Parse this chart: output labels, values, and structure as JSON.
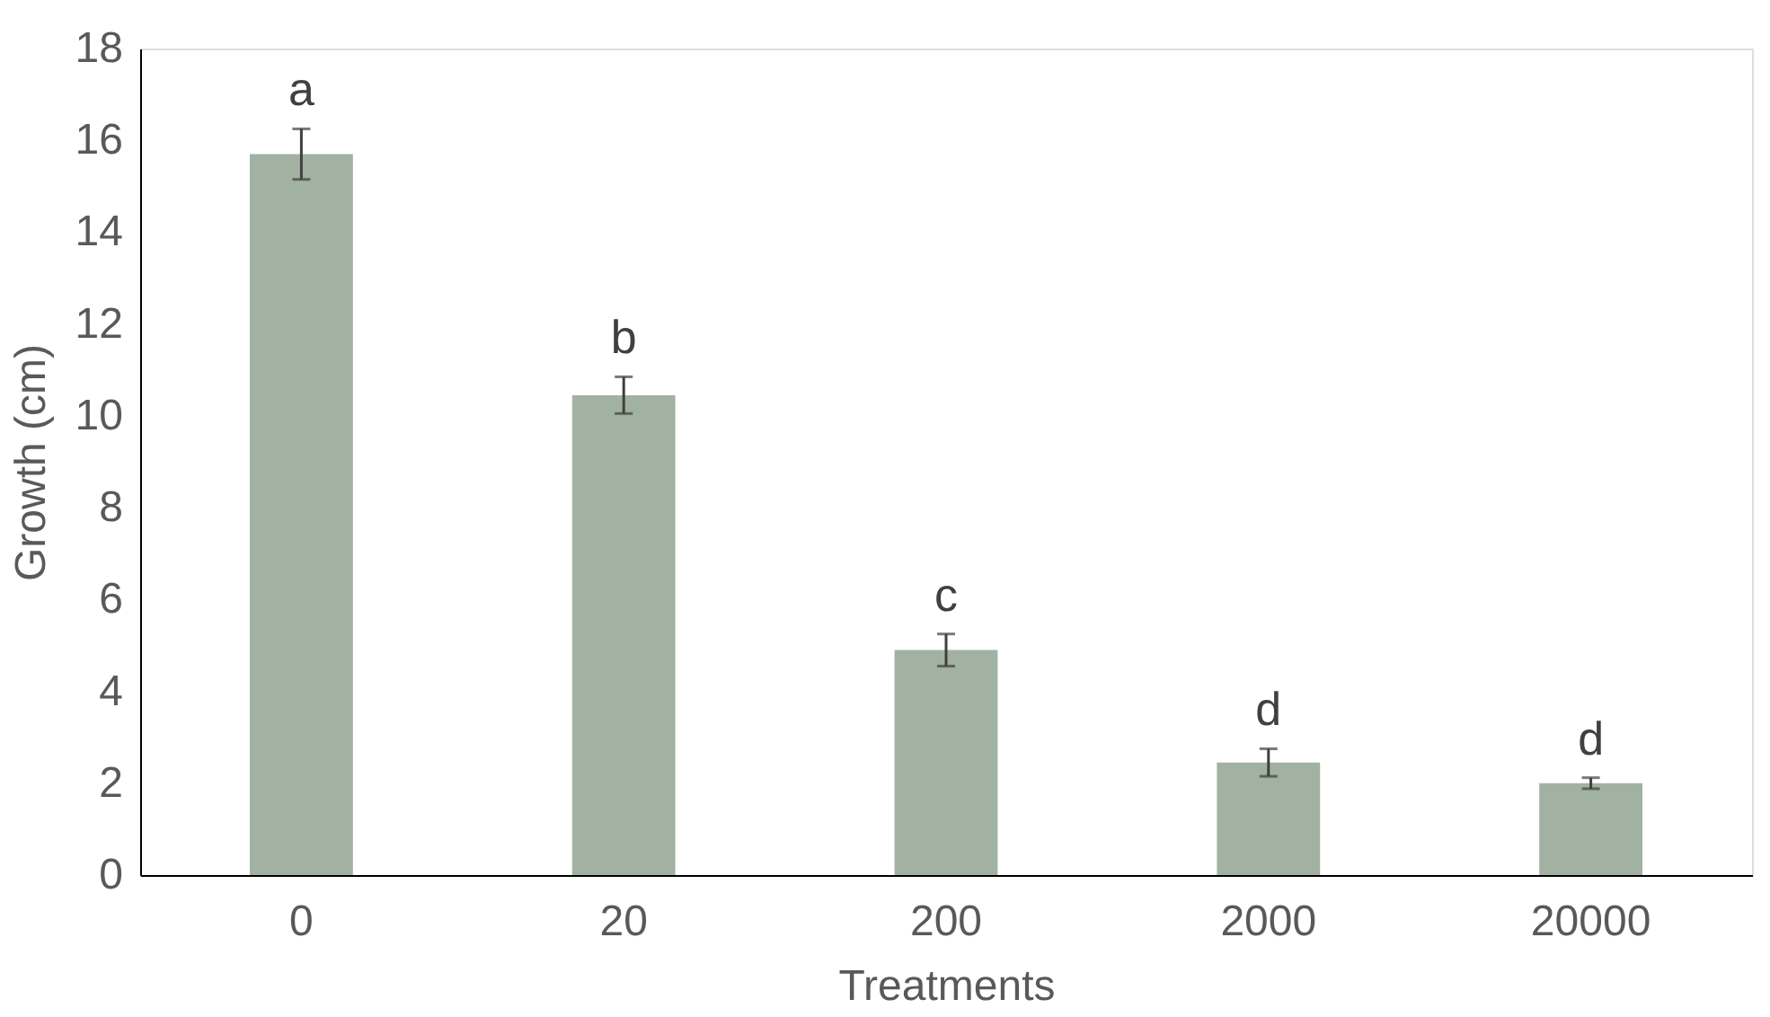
{
  "chart_data": {
    "type": "bar",
    "xlabel": "Treatments",
    "ylabel": "Growth (cm)",
    "categories": [
      "0",
      "20",
      "200",
      "2000",
      "20000"
    ],
    "values": [
      15.7,
      10.45,
      4.9,
      2.45,
      2.0
    ],
    "errors": [
      0.55,
      0.4,
      0.35,
      0.3,
      0.12
    ],
    "color": "#a2b2a2",
    "ylim": [
      0,
      18
    ],
    "yticks": [
      0,
      2,
      4,
      6,
      8,
      10,
      12,
      14,
      16,
      18
    ],
    "grid": false,
    "annotations": [
      "a",
      "b",
      "c",
      "d",
      "d"
    ]
  }
}
